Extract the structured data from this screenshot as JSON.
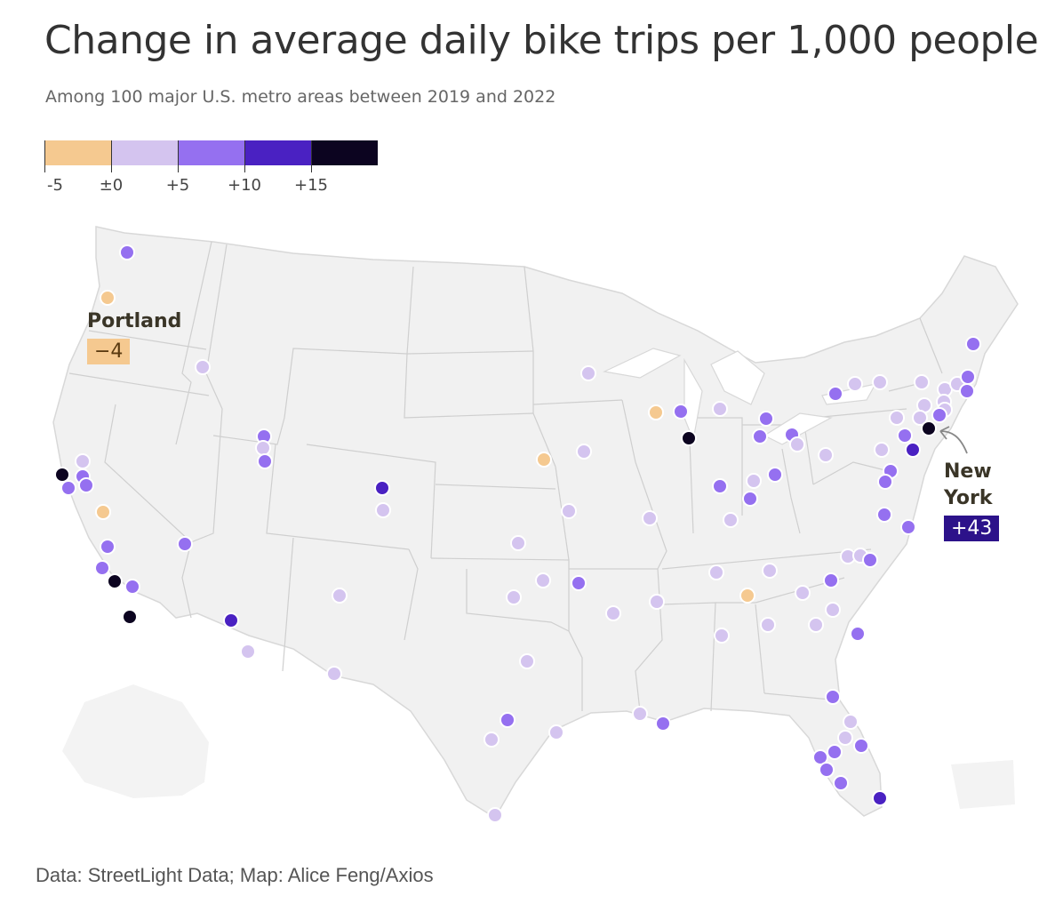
{
  "title": "Change in average daily bike trips per 1,000 people",
  "subtitle": "Among 100 major U.S. metro areas between 2019 and 2022",
  "source": "Data: StreetLight Data; Map: Alice Feng/Axios",
  "legend": {
    "colors": [
      "#f5c990",
      "#d4c4ef",
      "#9570f0",
      "#4a21c2",
      "#0c0420"
    ],
    "labels": [
      "-5",
      "±0",
      "+5",
      "+10",
      "+15"
    ]
  },
  "callouts": {
    "portland": {
      "name": "Portland",
      "value": "−4"
    },
    "new_york": {
      "name_line1": "New",
      "name_line2": "York",
      "value": "+43"
    }
  }
}
